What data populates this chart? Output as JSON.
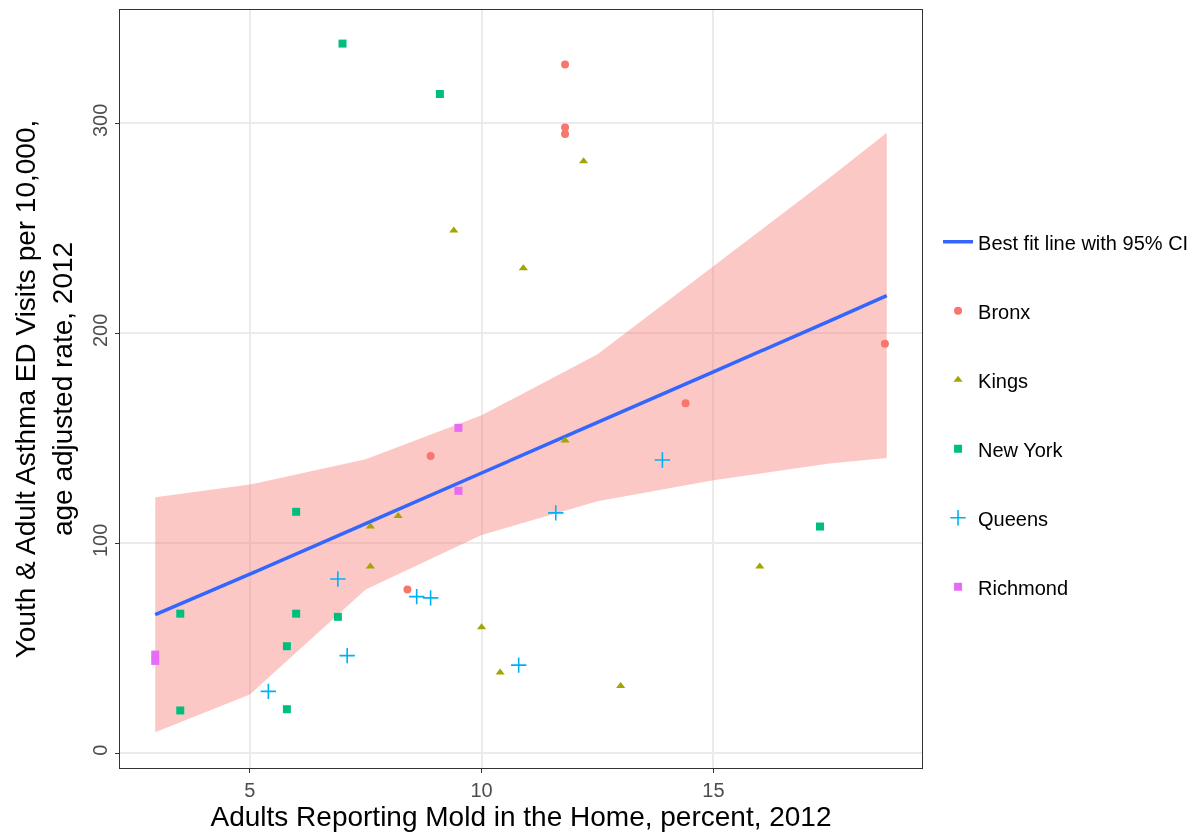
{
  "chart_data": {
    "type": "scatter",
    "xlabel": "Adults Reporting Mold in the Home, percent, 2012",
    "ylabel": "Youth & Adult Asthma ED Visits per 10,000,\nage adjusted rate, 2012",
    "xlim": [
      2.2,
      19.5
    ],
    "xticks": [
      5,
      10,
      15
    ],
    "ylim": [
      -7,
      354
    ],
    "yticks": [
      0,
      100,
      200,
      300
    ],
    "grid": true,
    "legend": "right",
    "series": [
      {
        "name": "Best fit line with 95% CI",
        "type": "line",
        "color": "#3366ff",
        "x": [
          2.96,
          5,
          7.5,
          10,
          12.5,
          15,
          17.5,
          18.74
        ],
        "values": [
          66,
          85.3,
          109.4,
          133.5,
          157.6,
          181.7,
          205.8,
          218
        ],
        "lower": [
          10,
          28,
          78,
          104,
          120,
          130,
          138,
          140.6
        ],
        "upper": [
          122,
          128,
          140,
          161,
          190,
          232,
          274,
          295.5
        ]
      },
      {
        "name": "Bronx",
        "marker": "circle",
        "color": "#f8766d",
        "x": [
          11.8,
          11.8,
          11.8,
          8.9,
          8.4,
          14.4,
          18.7
        ],
        "values": [
          328,
          298,
          295,
          141.6,
          78,
          166.7,
          195
        ]
      },
      {
        "name": "Kings",
        "marker": "triangle",
        "color": "#a3a500",
        "x": [
          12.2,
          9.4,
          10.9,
          11.8,
          7.6,
          8.2,
          7.6,
          10,
          10.4,
          13,
          16
        ],
        "values": [
          282,
          249,
          231,
          149,
          108,
          113,
          89,
          60,
          38.5,
          32,
          89
        ]
      },
      {
        "name": "New York",
        "marker": "square",
        "color": "#00bf7d",
        "x": [
          7,
          9.1,
          6,
          3.5,
          6,
          6.9,
          5.8,
          3.5,
          5.8,
          17.3
        ],
        "values": [
          338,
          314,
          115,
          66.5,
          66.5,
          65,
          51,
          20.4,
          21,
          108
        ]
      },
      {
        "name": "Queens",
        "marker": "cross",
        "color": "#00b0f6",
        "x": [
          6.9,
          8.6,
          8.9,
          7.1,
          5.4,
          10.8,
          11.6,
          13.9
        ],
        "values": [
          83,
          74.6,
          74,
          46.5,
          29.5,
          42,
          114.5,
          139.7
        ]
      },
      {
        "name": "Richmond",
        "marker": "square",
        "color": "#e76bf3",
        "x": [
          9.5,
          9.5,
          2.96,
          2.96
        ],
        "values": [
          155,
          125,
          47,
          44
        ]
      }
    ]
  }
}
